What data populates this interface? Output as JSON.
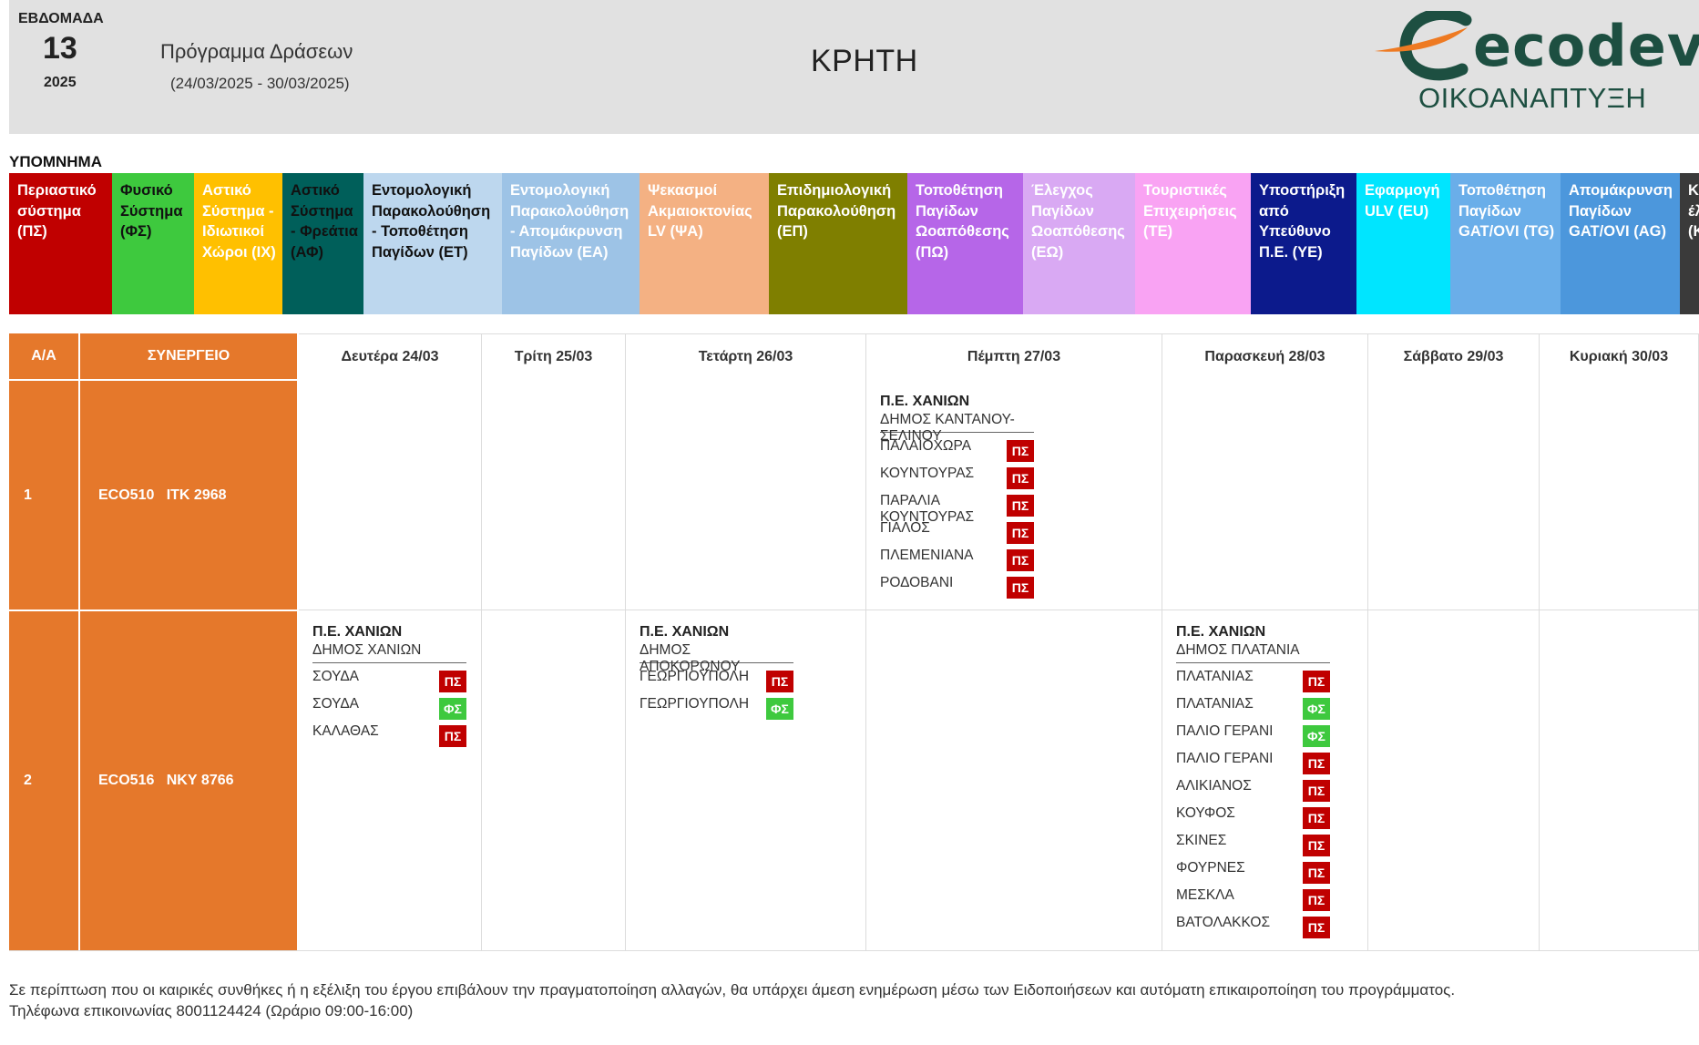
{
  "header": {
    "week_label": "ΕΒΔΟΜΑΔΑ",
    "week_number": "13",
    "year": "2025",
    "program_title": "Πρόγραμμα Δράσεων",
    "program_dates": "(24/03/2025 - 30/03/2025)",
    "region": "ΚΡΗΤΗ",
    "logo_word": "ecodev",
    "logo_subtitle": "ΟΙΚΟΑΝΑΠΤΥΞΗ"
  },
  "legend": {
    "title": "ΥΠΟΜΝΗΜΑ",
    "items": [
      {
        "label": "Περιαστικό σύστημα (ΠΣ)",
        "bg": "#c00000",
        "fg": "#ffffff"
      },
      {
        "label": "Φυσικό Σύστημα (ΦΣ)",
        "bg": "#3ec93e",
        "fg": "#111111"
      },
      {
        "label": "Αστικό Σύστημα - Ιδιωτικοί Χώροι (ΙΧ)",
        "bg": "#ffc000",
        "fg": "#ffffff"
      },
      {
        "label": "Αστικό Σύστημα - Φρεάτια (ΑΦ)",
        "bg": "#005f5a",
        "fg": "#111111"
      },
      {
        "label": "Εντομολογική Παρακολούθηση - Τοποθέτηση Παγίδων (ΕΤ)",
        "bg": "#bdd7ee",
        "fg": "#111111"
      },
      {
        "label": "Εντομολογική Παρακολούθηση - Απομάκρυνση Παγίδων (ΕΑ)",
        "bg": "#9dc3e6",
        "fg": "#ffffff"
      },
      {
        "label": "Ψεκασμοί Ακμαιοκτονίας LV (ΨΑ)",
        "bg": "#f4b183",
        "fg": "#ffffff"
      },
      {
        "label": "Επιδημιολογική Παρακολούθηση (ΕΠ)",
        "bg": "#7f7f00",
        "fg": "#ffffff"
      },
      {
        "label": "Τοποθέτηση Παγίδων Ωοαπόθεσης (ΠΩ)",
        "bg": "#b666e8",
        "fg": "#ffffff"
      },
      {
        "label": "Έλεγχος Παγίδων Ωοαπόθεσης (ΕΩ)",
        "bg": "#d9a9f3",
        "fg": "#ffffff"
      },
      {
        "label": "Τουριστικές Επιχειρήσεις (ΤΕ)",
        "bg": "#f9a3f3",
        "fg": "#ffffff"
      },
      {
        "label": "Υποστήριξη από Υπεύθυνο Π.Ε. (ΥΕ)",
        "bg": "#0c1a8c",
        "fg": "#ffffff"
      },
      {
        "label": "Εφαρμογή ULV (EU)",
        "bg": "#00e5ff",
        "fg": "#ffffff"
      },
      {
        "label": "Τοποθέτηση Παγίδων GAT/OVI (TG)",
        "bg": "#6aaee9",
        "fg": "#ffffff"
      },
      {
        "label": "Απομάκρυνση Παγίδων GAT/OVI (AG)",
        "bg": "#4c97dc",
        "fg": "#ffffff"
      },
      {
        "label": "Κα έλ (Κ",
        "bg": "#3a3a3a",
        "fg": "#ffffff"
      }
    ]
  },
  "table": {
    "headers": [
      "Α/Α",
      "ΣΥΝΕΡΓΕΙΟ",
      "Δευτέρα 24/03",
      "Τρίτη 25/03",
      "Τετάρτη 26/03",
      "Πέμπτη 27/03",
      "Παρασκευή 28/03",
      "Σάββατο 29/03",
      "Κυριακή 30/03"
    ],
    "rows": [
      {
        "aa": "1",
        "team": "ECO510   ΙΤΚ 2968",
        "days": [
          null,
          null,
          null,
          {
            "pe": "Π.Ε. ΧΑΝΙΩΝ",
            "dimos": "ΔΗΜΟΣ ΚΑΝΤΑΝΟΥ-ΣΕΛΙΝΟΥ",
            "places": [
              {
                "name": "ΠΑΛΑΙΟΧΩΡΑ",
                "badge": "ΠΣ",
                "color": "#c00000"
              },
              {
                "name": "ΚΟΥΝΤΟΥΡΑΣ",
                "badge": "ΠΣ",
                "color": "#c00000"
              },
              {
                "name": "ΠΑΡΑΛΙΑ ΚΟΥΝΤΟΥΡΑΣ",
                "badge": "ΠΣ",
                "color": "#c00000"
              },
              {
                "name": "ΓΙΑΛΟΣ",
                "badge": "ΠΣ",
                "color": "#c00000"
              },
              {
                "name": "ΠΛΕΜΕΝΙΑΝΑ",
                "badge": "ΠΣ",
                "color": "#c00000"
              },
              {
                "name": "ΡΟΔΟΒΑΝΙ",
                "badge": "ΠΣ",
                "color": "#c00000"
              }
            ]
          },
          null,
          null,
          null
        ]
      },
      {
        "aa": "2",
        "team": "ECO516   ΝΚΥ 8766",
        "days": [
          {
            "pe": "Π.Ε. ΧΑΝΙΩΝ",
            "dimos": "ΔΗΜΟΣ ΧΑΝΙΩΝ",
            "places": [
              {
                "name": "ΣΟΥΔΑ",
                "badge": "ΠΣ",
                "color": "#c00000"
              },
              {
                "name": "ΣΟΥΔΑ",
                "badge": "ΦΣ",
                "color": "#3ec93e"
              },
              {
                "name": "ΚΑΛΑΘΑΣ",
                "badge": "ΠΣ",
                "color": "#c00000"
              }
            ]
          },
          null,
          {
            "pe": "Π.Ε. ΧΑΝΙΩΝ",
            "dimos": "ΔΗΜΟΣ ΑΠΟΚΟΡΩΝΟΥ",
            "places": [
              {
                "name": "ΓΕΩΡΓΙΟΥΠΟΛΗ",
                "badge": "ΠΣ",
                "color": "#c00000"
              },
              {
                "name": "ΓΕΩΡΓΙΟΥΠΟΛΗ",
                "badge": "ΦΣ",
                "color": "#3ec93e"
              }
            ]
          },
          null,
          {
            "pe": "Π.Ε. ΧΑΝΙΩΝ",
            "dimos": "ΔΗΜΟΣ ΠΛΑΤΑΝΙΑ",
            "places": [
              {
                "name": "ΠΛΑΤΑΝΙΑΣ",
                "badge": "ΠΣ",
                "color": "#c00000"
              },
              {
                "name": "ΠΛΑΤΑΝΙΑΣ",
                "badge": "ΦΣ",
                "color": "#3ec93e"
              },
              {
                "name": "ΠΑΛΙΟ ΓΕΡΑΝΙ",
                "badge": "ΦΣ",
                "color": "#3ec93e"
              },
              {
                "name": "ΠΑΛΙΟ ΓΕΡΑΝΙ",
                "badge": "ΠΣ",
                "color": "#c00000"
              },
              {
                "name": "ΑΛΙΚΙΑΝΟΣ",
                "badge": "ΠΣ",
                "color": "#c00000"
              },
              {
                "name": "ΚΟΥΦΟΣ",
                "badge": "ΠΣ",
                "color": "#c00000"
              },
              {
                "name": "ΣΚΙΝΕΣ",
                "badge": "ΠΣ",
                "color": "#c00000"
              },
              {
                "name": "ΦΟΥΡΝΕΣ",
                "badge": "ΠΣ",
                "color": "#c00000"
              },
              {
                "name": "ΜΕΣΚΛΑ",
                "badge": "ΠΣ",
                "color": "#c00000"
              },
              {
                "name": "ΒΑΤΟΛΑΚΚΟΣ",
                "badge": "ΠΣ",
                "color": "#c00000"
              }
            ]
          },
          null,
          null
        ]
      }
    ]
  },
  "footer": {
    "note": "Σε περίπτωση που οι καιρικές συνθήκες ή η εξέλιξη του έργου επιβάλουν την πραγματοποίηση αλλαγών, θα υπάρχει άμεση ενημέρωση μέσω των Ειδοποιήσεων και αυτόματη επικαιροποίηση του προγράμματος.",
    "phone": "Τηλέφωνα επικοινωνίας 8001124424 (Ωράριο 09:00-16:00)"
  }
}
